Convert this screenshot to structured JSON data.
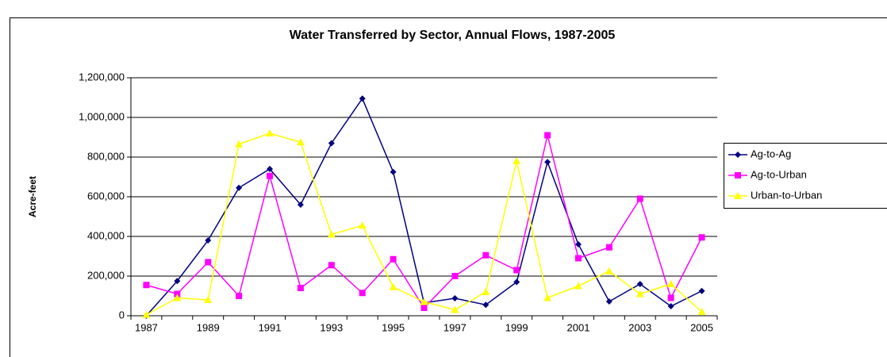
{
  "chart_data": {
    "type": "line",
    "title": "Water Transferred by Sector, Annual Flows, 1987-2005",
    "y_label": "Acre-feet",
    "categories": [
      "1987",
      null,
      "1989",
      null,
      "1991",
      null,
      "1993",
      null,
      "1995",
      null,
      "1997",
      null,
      "1999",
      null,
      "2001",
      null,
      "2003",
      null,
      "2005"
    ],
    "series": [
      {
        "name": "Ag-to-Ag",
        "color": "#000080",
        "marker": "diamond",
        "values": [
          0,
          175000,
          380000,
          645000,
          740000,
          560000,
          870000,
          1095000,
          725000,
          65000,
          88000,
          55000,
          170000,
          775000,
          360000,
          72000,
          160000,
          48000,
          125000
        ]
      },
      {
        "name": "Ag-to-Urban",
        "color": "#ff00ff",
        "marker": "square",
        "values": [
          155000,
          110000,
          270000,
          100000,
          705000,
          140000,
          255000,
          115000,
          285000,
          40000,
          200000,
          305000,
          230000,
          910000,
          290000,
          345000,
          590000,
          90000,
          395000
        ]
      },
      {
        "name": "Urban-to-Urban",
        "color": "#ffff00",
        "marker": "triangle",
        "values": [
          5000,
          90000,
          80000,
          865000,
          920000,
          875000,
          410000,
          455000,
          145000,
          70000,
          30000,
          120000,
          780000,
          90000,
          150000,
          225000,
          110000,
          160000,
          20000
        ]
      }
    ],
    "ylim": [
      0,
      1200000
    ],
    "yticks": [
      0,
      {
        "value": 200000,
        "label": "200,000"
      },
      {
        "value": 400000,
        "label": "400,000"
      },
      {
        "value": 600000,
        "label": "600,000"
      },
      {
        "value": 800000,
        "label": "800,000"
      },
      {
        "value": 1000000,
        "label": "1,000,000"
      },
      {
        "value": 1200000,
        "label": "1,200,000"
      }
    ],
    "grid": true,
    "legend": "right"
  }
}
